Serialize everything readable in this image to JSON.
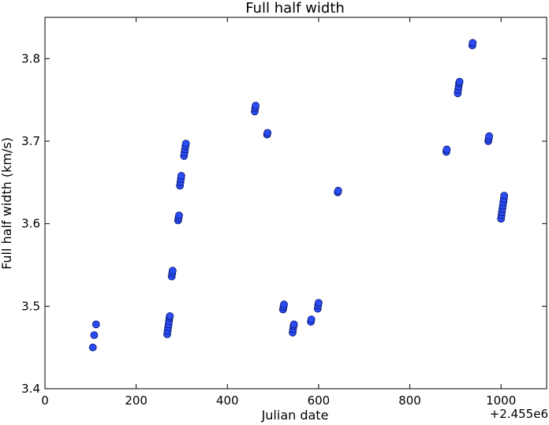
{
  "chart_data": {
    "type": "scatter",
    "title": "Full half width",
    "xlabel": "Julian date",
    "ylabel": "Full half width (km/s)",
    "x_offset_label": "+2.455e6",
    "xlim": [
      0,
      1100
    ],
    "ylim": [
      3.4,
      3.85
    ],
    "xticks": [
      0,
      200,
      400,
      600,
      800,
      1000
    ],
    "yticks": [
      3.4,
      3.5,
      3.6,
      3.7,
      3.8
    ],
    "xtick_labels": [
      "0",
      "200",
      "400",
      "600",
      "800",
      "1000"
    ],
    "ytick_labels": [
      "3.4",
      "3.5",
      "3.6",
      "3.7",
      "3.8"
    ],
    "grid": false,
    "marker_color": "#2a4bf5",
    "marker_edge_color": "#0a1a6a",
    "series": [
      {
        "points": [
          [
            105,
            3.45
          ],
          [
            108,
            3.465
          ],
          [
            112,
            3.478
          ],
          [
            268,
            3.466
          ],
          [
            269,
            3.47
          ],
          [
            270,
            3.474
          ],
          [
            271,
            3.478
          ],
          [
            272,
            3.482
          ],
          [
            273,
            3.486
          ],
          [
            274,
            3.488
          ],
          [
            278,
            3.536
          ],
          [
            279,
            3.54
          ],
          [
            280,
            3.543
          ],
          [
            292,
            3.604
          ],
          [
            293,
            3.607
          ],
          [
            294,
            3.61
          ],
          [
            296,
            3.646
          ],
          [
            297,
            3.65
          ],
          [
            298,
            3.654
          ],
          [
            299,
            3.658
          ],
          [
            305,
            3.682
          ],
          [
            306,
            3.686
          ],
          [
            307,
            3.69
          ],
          [
            308,
            3.694
          ],
          [
            309,
            3.697
          ],
          [
            460,
            3.736
          ],
          [
            461,
            3.74
          ],
          [
            462,
            3.743
          ],
          [
            487,
            3.708
          ],
          [
            488,
            3.71
          ],
          [
            522,
            3.496
          ],
          [
            523,
            3.499
          ],
          [
            524,
            3.502
          ],
          [
            543,
            3.468
          ],
          [
            544,
            3.472
          ],
          [
            545,
            3.476
          ],
          [
            546,
            3.478
          ],
          [
            583,
            3.481
          ],
          [
            584,
            3.484
          ],
          [
            598,
            3.497
          ],
          [
            599,
            3.501
          ],
          [
            600,
            3.504
          ],
          [
            642,
            3.638
          ],
          [
            643,
            3.64
          ],
          [
            880,
            3.687
          ],
          [
            881,
            3.69
          ],
          [
            905,
            3.758
          ],
          [
            906,
            3.762
          ],
          [
            907,
            3.766
          ],
          [
            908,
            3.77
          ],
          [
            909,
            3.772
          ],
          [
            937,
            3.816
          ],
          [
            938,
            3.819
          ],
          [
            972,
            3.7
          ],
          [
            973,
            3.703
          ],
          [
            974,
            3.706
          ],
          [
            1000,
            3.606
          ],
          [
            1001,
            3.61
          ],
          [
            1002,
            3.614
          ],
          [
            1003,
            3.618
          ],
          [
            1004,
            3.622
          ],
          [
            1005,
            3.626
          ],
          [
            1006,
            3.63
          ],
          [
            1007,
            3.634
          ]
        ]
      }
    ]
  }
}
